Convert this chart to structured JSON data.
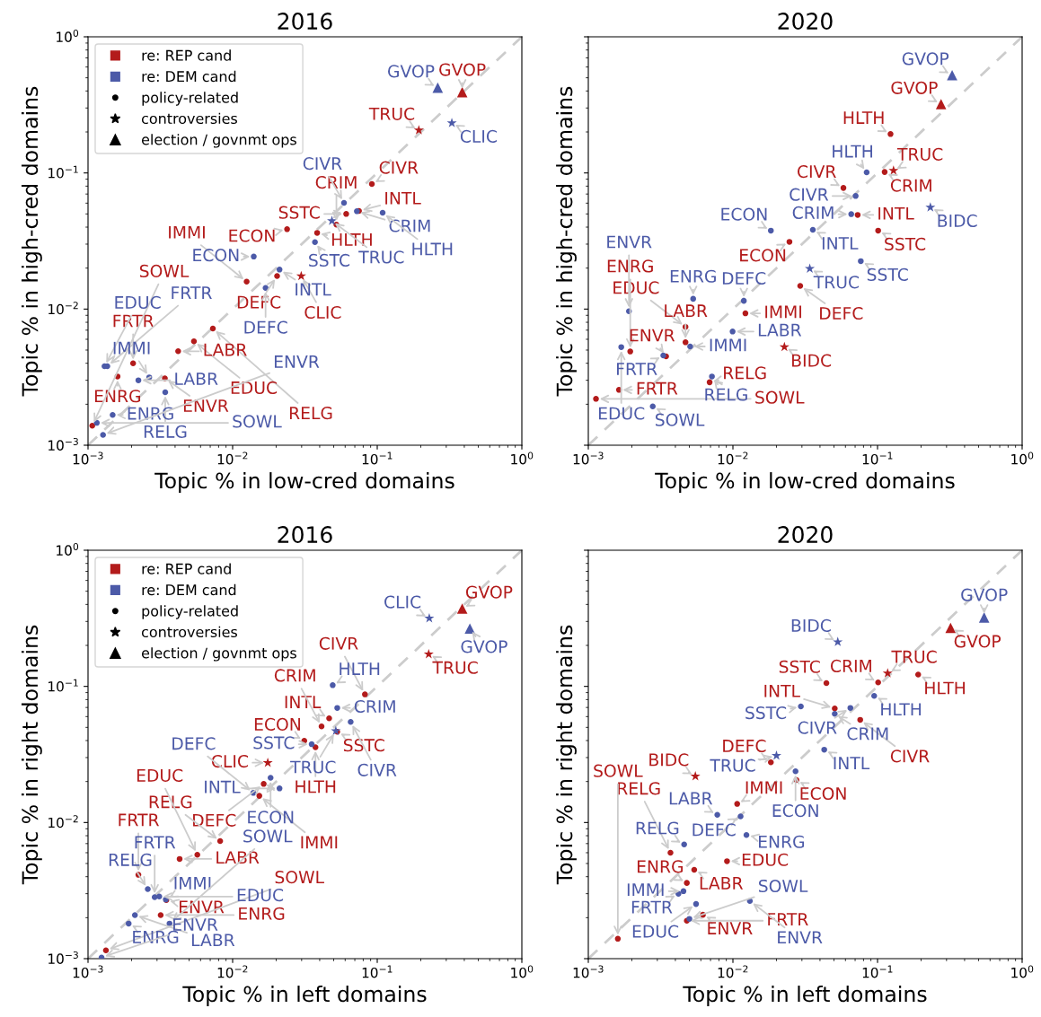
{
  "chart_data": [
    {
      "type": "scatter",
      "title": "2016",
      "xlabel": "Topic % in low-cred domains",
      "ylabel": "Topic % in high-cred domains",
      "log": "xy",
      "xlim": [
        0.001,
        1
      ],
      "ylim": [
        0.001,
        1
      ],
      "xticks": [
        {
          "value": 0.001,
          "label": "10$^{−3}$"
        },
        {
          "value": 0.01,
          "label": "10$^{−2}$"
        },
        {
          "value": 0.1,
          "label": "10$^{−1}$"
        },
        {
          "value": 1,
          "label": "10$^{0}$"
        }
      ],
      "yticks": [
        {
          "value": 0.001,
          "label": "10$^{−3}$"
        },
        {
          "value": 0.01,
          "label": "10$^{−2}$"
        },
        {
          "value": 0.1,
          "label": "10$^{−1}$"
        },
        {
          "value": 1,
          "label": "10$^{0}$"
        }
      ],
      "legend": "top left",
      "annotations": [
        "policy-related",
        "controversies",
        "election / govnmt ops"
      ],
      "series": [
        {
          "type": "line",
          "color": "#cccccc",
          "line_style": "dashed",
          "marker": "none",
          "x": [
            0.001,
            1
          ],
          "values": [
            0.001,
            1
          ]
        },
        {
          "name": "re: REP cand",
          "color": "#b31b1b",
          "marker": "circle",
          "x": [
            0.0918,
            0.0748,
            0.061,
            0.0522,
            0.0238,
            0.0384,
            0.0203,
            0.0125,
            0.0073,
            0.0054,
            0.0042,
            0.00205,
            0.0034,
            0.0016,
            0.00107
          ],
          "values": [
            0.083,
            0.0526,
            0.05,
            0.0417,
            0.0386,
            0.0363,
            0.0175,
            0.0159,
            0.0072,
            0.0058,
            0.0049,
            0.004,
            0.0031,
            0.0032,
            0.00139
          ],
          "value_labels": [
            "CIVR",
            "INTL",
            "SSTC",
            "CRIM",
            "ECON",
            "HLTH",
            "DEFC",
            "IMMI",
            "RELG",
            "EDUC",
            "LABR",
            "FRTR",
            "ENVR",
            "ENRG",
            "SOWL"
          ]
        },
        {
          "color": "#b31b1b",
          "marker": "star",
          "x": [
            0.194,
            0.0298
          ],
          "values": [
            0.206,
            0.0175
          ],
          "value_labels": [
            "TRUC",
            "CLIC"
          ]
        },
        {
          "color": "#b31b1b",
          "marker": "triangle",
          "x": [
            0.387
          ],
          "values": [
            0.392
          ],
          "value_labels": [
            "GVOP"
          ]
        },
        {
          "name": "re: DEM cand",
          "color": "#4c5aa8",
          "marker": "circle",
          "x": [
            0.0589,
            0.0723,
            0.109,
            0.0371,
            0.014,
            0.0211,
            0.0169,
            0.0013,
            0.00136,
            0.00265,
            0.00223,
            0.00342,
            0.00148,
            0.00115,
            0.00127
          ],
          "values": [
            0.0603,
            0.0523,
            0.051,
            0.031,
            0.0243,
            0.0195,
            0.0143,
            0.0038,
            0.0038,
            0.00315,
            0.003,
            0.00245,
            0.00167,
            0.00146,
            0.00119
          ],
          "value_labels": [
            "CIVR",
            "CRIM",
            "HLTH",
            "SSTC",
            "ECON",
            "INTL",
            "DEFC",
            "EDUC",
            "FRTR",
            "IMMI",
            "LABR",
            "RELG",
            "ENRG",
            "SOWL",
            "ENVR"
          ]
        },
        {
          "color": "#4c5aa8",
          "marker": "star",
          "x": [
            0.328,
            0.0486
          ],
          "values": [
            0.233,
            0.0445
          ],
          "value_labels": [
            "CLIC",
            "TRUC"
          ]
        },
        {
          "color": "#4c5aa8",
          "marker": "triangle",
          "x": [
            0.262
          ],
          "values": [
            0.423
          ],
          "value_labels": [
            "GVOP"
          ]
        }
      ]
    },
    {
      "type": "scatter",
      "title": "2020",
      "xlabel": "Topic % in low-cred domains",
      "ylabel": "Topic % in high-cred domains",
      "log": "xy",
      "xlim": [
        0.001,
        1
      ],
      "ylim": [
        0.001,
        1
      ],
      "xticks": [
        {
          "value": 0.001,
          "label": "10$^{−3}$"
        },
        {
          "value": 0.01,
          "label": "10$^{−2}$"
        },
        {
          "value": 0.1,
          "label": "10$^{−1}$"
        },
        {
          "value": 1,
          "label": "10$^{0}$"
        }
      ],
      "yticks": [
        0.001,
        0.01,
        0.1,
        1
      ],
      "tick_labels": "x",
      "series": [
        {
          "type": "line",
          "color": "#cccccc",
          "line_style": "dashed",
          "marker": "none",
          "x": [
            0.001,
            1
          ],
          "values": [
            0.001,
            1
          ]
        },
        {
          "color": "#b31b1b",
          "marker": "circle",
          "x": [
            0.123,
            0.112,
            0.0581,
            0.0729,
            0.101,
            0.0246,
            0.0292,
            0.0122,
            0.0069,
            0.0047,
            0.0047,
            0.00195,
            0.00345,
            0.00163,
            0.00113
          ],
          "values": [
            0.193,
            0.1016,
            0.0776,
            0.0492,
            0.0377,
            0.0312,
            0.0148,
            0.0093,
            0.0029,
            0.0074,
            0.0057,
            0.00488,
            0.0045,
            0.00255,
            0.00219
          ],
          "value_labels": [
            "HLTH",
            "CRIM",
            "CIVR",
            "INTL",
            "SSTC",
            "ECON",
            "DEFC",
            "IMMI",
            "RELG",
            "EDUC",
            "LABR",
            "ENRG",
            "ENVR",
            "FRTR",
            "SOWL"
          ]
        },
        {
          "color": "#b31b1b",
          "marker": "star",
          "x": [
            0.129,
            0.0227
          ],
          "values": [
            0.104,
            0.00526
          ],
          "value_labels": [
            "TRUC",
            "BIDC"
          ]
        },
        {
          "color": "#b31b1b",
          "marker": "triangle",
          "x": [
            0.275
          ],
          "values": [
            0.32
          ],
          "value_labels": [
            "GVOP"
          ]
        },
        {
          "color": "#4c5aa8",
          "marker": "circle",
          "x": [
            0.0841,
            0.0706,
            0.0658,
            0.0766,
            0.0183,
            0.0357,
            0.0119,
            0.00995,
            0.00716,
            0.00531,
            0.00169,
            0.00191,
            0.00506,
            0.0033,
            0.00279
          ],
          "values": [
            0.101,
            0.0677,
            0.0498,
            0.0225,
            0.0377,
            0.0382,
            0.0115,
            0.00684,
            0.0032,
            0.0119,
            0.00526,
            0.00965,
            0.00531,
            0.00456,
            0.00193
          ],
          "value_labels": [
            "HLTH",
            "CIVR",
            "CRIM",
            "SSTC",
            "ECON",
            "INTL",
            "DEFC",
            "LABR",
            "RELG",
            "ENRG",
            "EDUC",
            "ENVR",
            "IMMI",
            "FRTR",
            "SOWL"
          ]
        },
        {
          "color": "#4c5aa8",
          "marker": "star",
          "x": [
            0.232,
            0.034
          ],
          "values": [
            0.0559,
            0.0198
          ],
          "value_labels": [
            "BIDC",
            "TRUC"
          ]
        },
        {
          "color": "#4c5aa8",
          "marker": "triangle",
          "x": [
            0.328
          ],
          "values": [
            0.523
          ],
          "value_labels": [
            "GVOP"
          ]
        }
      ]
    },
    {
      "type": "scatter",
      "title": "2016",
      "xlabel": "Topic % in left domains",
      "ylabel": "Topic % in right domains",
      "log": "xy",
      "xlim": [
        0.001,
        1
      ],
      "ylim": [
        0.001,
        1
      ],
      "xticks": [
        {
          "value": 0.001,
          "label": "10$^{−3}$"
        },
        {
          "value": 0.01,
          "label": "10$^{−2}$"
        },
        {
          "value": 0.1,
          "label": "10$^{−1}$"
        },
        {
          "value": 1,
          "label": "10$^{0}$"
        }
      ],
      "yticks": [
        {
          "value": 0.001,
          "label": "10$^{−3}$"
        },
        {
          "value": 0.01,
          "label": "10$^{−2}$"
        },
        {
          "value": 0.1,
          "label": "10$^{−1}$"
        },
        {
          "value": 1,
          "label": "10$^{0}$"
        }
      ],
      "legend": "top left",
      "annotations": [
        "policy-related",
        "controversies",
        "election / govnmt ops"
      ],
      "series": [
        {
          "type": "line",
          "color": "#cccccc",
          "line_style": "dashed",
          "marker": "none",
          "x": [
            0.001,
            1
          ],
          "values": [
            0.001,
            1
          ]
        },
        {
          "name": "re: REP cand",
          "color": "#b31b1b",
          "marker": "circle",
          "x": [
            0.0822,
            0.0465,
            0.0412,
            0.0529,
            0.0313,
            0.0374,
            0.0164,
            0.0153,
            0.0082,
            0.0057,
            0.0043,
            0.00223,
            0.00318,
            0.00348,
            0.00133
          ],
          "values": [
            0.0873,
            0.0582,
            0.0508,
            0.0464,
            0.0399,
            0.0357,
            0.0192,
            0.0157,
            0.0073,
            0.0058,
            0.0054,
            0.00413,
            0.00209,
            0.00269,
            0.00115
          ],
          "value_labels": [
            "CIVR",
            "INTL",
            "CRIM",
            "SSTC",
            "ECON",
            "HLTH",
            "DEFC",
            "IMMI",
            "RELG",
            "EDUC",
            "LABR",
            "FRTR",
            "ENRG",
            "ENVR",
            "SOWL"
          ]
        },
        {
          "color": "#b31b1b",
          "marker": "star",
          "x": [
            0.227,
            0.0175
          ],
          "values": [
            0.1725,
            0.0275
          ],
          "value_labels": [
            "TRUC",
            "CLIC"
          ]
        },
        {
          "color": "#b31b1b",
          "marker": "triangle",
          "x": [
            0.387
          ],
          "values": [
            0.373
          ],
          "value_labels": [
            "GVOP"
          ]
        },
        {
          "name": "re: DEM cand",
          "color": "#4c5aa8",
          "marker": "circle",
          "x": [
            0.0492,
            0.0529,
            0.0655,
            0.0352,
            0.0211,
            0.0183,
            0.0139,
            0.00345,
            0.00259,
            0.00289,
            0.00211,
            0.00191,
            0.00366,
            0.00311,
            0.00124
          ],
          "values": [
            0.102,
            0.0695,
            0.0548,
            0.0376,
            0.0178,
            0.0213,
            0.0165,
            0.00272,
            0.00324,
            0.00283,
            0.00209,
            0.00181,
            0.00181,
            0.00286,
            0.00102
          ],
          "value_labels": [
            "HLTH",
            "CRIM",
            "CIVR",
            "SSTC",
            "INTL",
            "ECON",
            "DEFC",
            "IMMI",
            "RELG",
            "FRTR",
            "LABR",
            "ENRG",
            "SOWL",
            "EDUC",
            "ENVR"
          ]
        },
        {
          "color": "#4c5aa8",
          "marker": "star",
          "x": [
            0.229,
            0.0517
          ],
          "values": [
            0.316,
            0.0471
          ],
          "value_labels": [
            "CLIC",
            "TRUC"
          ]
        },
        {
          "color": "#4c5aa8",
          "marker": "triangle",
          "x": [
            0.437
          ],
          "values": [
            0.266
          ],
          "value_labels": [
            "GVOP"
          ]
        }
      ]
    },
    {
      "type": "scatter",
      "title": "2020",
      "xlabel": "Topic % in left domains",
      "ylabel": "Topic % in right domains",
      "log": "xy",
      "xlim": [
        0.001,
        1
      ],
      "ylim": [
        0.001,
        1
      ],
      "xticks": [
        {
          "value": 0.001,
          "label": "10$^{−3}$"
        },
        {
          "value": 0.01,
          "label": "10$^{−2}$"
        },
        {
          "value": 0.1,
          "label": "10$^{−1}$"
        },
        {
          "value": 1,
          "label": "10$^{0}$"
        }
      ],
      "yticks": [
        0.001,
        0.01,
        0.1,
        1
      ],
      "tick_labels": "x",
      "series": [
        {
          "type": "line",
          "color": "#cccccc",
          "line_style": "dashed",
          "marker": "none",
          "x": [
            0.001,
            1
          ],
          "values": [
            0.001,
            1
          ]
        },
        {
          "color": "#b31b1b",
          "marker": "circle",
          "x": [
            0.191,
            0.101,
            0.0443,
            0.0506,
            0.0759,
            0.0183,
            0.0275,
            0.0107,
            0.0037,
            0.0091,
            0.0054,
            0.0048,
            0.0062,
            0.0016,
            0.0048
          ],
          "values": [
            0.122,
            0.107,
            0.1057,
            0.0689,
            0.0568,
            0.0277,
            0.0205,
            0.0137,
            0.006,
            0.0052,
            0.0045,
            0.0036,
            0.0021,
            0.0014,
            0.0019
          ],
          "value_labels": [
            "HLTH",
            "CRIM",
            "SSTC",
            "INTL",
            "CIVR",
            "DEFC",
            "ECON",
            "IMMI",
            "RELG",
            "EDUC",
            "LABR",
            "ENRG",
            "ENVR",
            "SOWL",
            "FRTR"
          ]
        },
        {
          "color": "#b31b1b",
          "marker": "star",
          "x": [
            0.1175,
            0.0055
          ],
          "values": [
            0.125,
            0.0219
          ],
          "value_labels": [
            "TRUC",
            "BIDC"
          ]
        },
        {
          "color": "#b31b1b",
          "marker": "triangle",
          "x": [
            0.32
          ],
          "values": [
            0.269
          ],
          "value_labels": [
            "GVOP"
          ]
        },
        {
          "color": "#4c5aa8",
          "marker": "circle",
          "x": [
            0.0948,
            0.0295,
            0.0649,
            0.0506,
            0.0428,
            0.0271,
            0.0078,
            0.0113,
            0.0124,
            0.0046,
            0.00455,
            0.00556,
            0.0131,
            0.005,
            0.0042
          ],
          "values": [
            0.0851,
            0.0713,
            0.0695,
            0.0628,
            0.0343,
            0.0238,
            0.0114,
            0.0111,
            0.0081,
            0.0069,
            0.00313,
            0.00252,
            0.00265,
            0.00196,
            0.003
          ],
          "value_labels": [
            "HLTH",
            "SSTC",
            "CIVR",
            "CRIM",
            "INTL",
            "ECON",
            "LABR",
            "DEFC",
            "ENRG",
            "RELG",
            "IMMI",
            "EDUC",
            "ENVR",
            "SOWL",
            "FRTR"
          ]
        },
        {
          "color": "#4c5aa8",
          "marker": "star",
          "x": [
            0.0531,
            0.02
          ],
          "values": [
            0.212,
            0.031
          ],
          "value_labels": [
            "BIDC",
            "TRUC"
          ]
        },
        {
          "color": "#4c5aa8",
          "marker": "triangle",
          "x": [
            0.546
          ],
          "values": [
            0.321
          ],
          "value_labels": [
            "GVOP"
          ]
        }
      ]
    }
  ]
}
